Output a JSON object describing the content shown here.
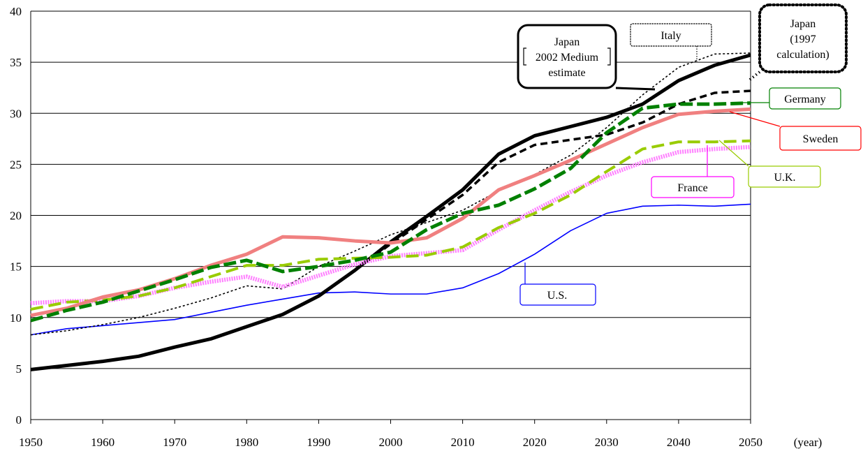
{
  "chart_data": {
    "type": "line",
    "title": "",
    "xlabel": "(year)",
    "ylabel": "",
    "xlim": [
      1950,
      2050
    ],
    "ylim": [
      0,
      40
    ],
    "grid": "horizontal",
    "x_ticks": [
      "1950",
      "1960",
      "1970",
      "1980",
      "1990",
      "2000",
      "2010",
      "2020",
      "2030",
      "2040",
      "2050"
    ],
    "y_ticks": [
      "0",
      "5",
      "10",
      "15",
      "20",
      "25",
      "30",
      "35",
      "40"
    ],
    "x": [
      1950,
      1955,
      1960,
      1965,
      1970,
      1975,
      1980,
      1985,
      1990,
      1995,
      2000,
      2005,
      2010,
      2015,
      2020,
      2025,
      2030,
      2035,
      2040,
      2045,
      2050
    ],
    "series": [
      {
        "id": "us",
        "name": "U.S.",
        "label_lines": [
          "U.S."
        ],
        "color": "#0000ff",
        "values": [
          8.3,
          8.9,
          9.2,
          9.5,
          9.8,
          10.5,
          11.2,
          11.8,
          12.4,
          12.5,
          12.3,
          12.3,
          12.9,
          14.3,
          16.2,
          18.5,
          20.2,
          20.9,
          21.0,
          20.9,
          21.1
        ]
      },
      {
        "id": "italy",
        "name": "Italy",
        "label_lines": [
          "Italy"
        ],
        "color": "#000000",
        "values": [
          8.3,
          8.7,
          9.3,
          10.0,
          10.9,
          11.9,
          13.1,
          12.8,
          15.0,
          16.5,
          18.1,
          19.3,
          20.5,
          22.4,
          24.0,
          25.9,
          28.6,
          31.8,
          34.5,
          35.8,
          35.9
        ]
      },
      {
        "id": "japan1997",
        "name": "Japan (1997 calculation)",
        "label_lines": [
          "Japan",
          "(1997",
          "calculation)"
        ],
        "color": "#000000",
        "values": [
          4.9,
          5.3,
          5.7,
          6.2,
          7.1,
          7.9,
          9.1,
          10.3,
          12.1,
          14.6,
          17.2,
          19.6,
          22.0,
          25.2,
          26.9,
          27.4,
          27.9,
          29.1,
          30.9,
          32.0,
          32.2
        ]
      },
      {
        "id": "japan2002",
        "name": "Japan 2002 Medium estimate",
        "label_lines": [
          "Japan",
          "2002 Medium",
          "estimate"
        ],
        "color": "#000000",
        "values": [
          4.9,
          5.3,
          5.7,
          6.2,
          7.1,
          7.9,
          9.1,
          10.3,
          12.1,
          14.6,
          17.4,
          19.9,
          22.5,
          26.0,
          27.8,
          28.7,
          29.6,
          30.9,
          33.2,
          34.7,
          35.7
        ]
      },
      {
        "id": "france",
        "name": "France",
        "label_lines": [
          "France"
        ],
        "color": "#ff7fff",
        "values": [
          11.4,
          11.6,
          11.6,
          12.1,
          12.9,
          13.5,
          14.0,
          13.0,
          14.1,
          15.2,
          16.0,
          16.3,
          16.6,
          18.6,
          20.5,
          22.3,
          23.9,
          25.2,
          26.2,
          26.5,
          26.7
        ]
      },
      {
        "id": "uk",
        "name": "U.K.",
        "label_lines": [
          "U.K."
        ],
        "color": "#99cc00",
        "values": [
          10.8,
          11.5,
          11.7,
          12.1,
          12.9,
          14.0,
          15.1,
          15.1,
          15.7,
          15.8,
          15.9,
          16.1,
          16.9,
          18.8,
          20.2,
          22.0,
          24.3,
          26.5,
          27.2,
          27.2,
          27.3
        ]
      },
      {
        "id": "sweden",
        "name": "Sweden",
        "label_lines": [
          "Sweden"
        ],
        "color": "#f08080",
        "values": [
          10.2,
          10.9,
          12.0,
          12.7,
          13.8,
          15.1,
          16.2,
          17.9,
          17.8,
          17.5,
          17.3,
          17.8,
          19.7,
          22.5,
          23.9,
          25.4,
          27.0,
          28.6,
          29.9,
          30.2,
          30.4
        ]
      },
      {
        "id": "germany",
        "name": "Germany",
        "label_lines": [
          "Germany"
        ],
        "color": "#008000",
        "values": [
          9.7,
          10.7,
          11.5,
          12.6,
          13.7,
          14.9,
          15.6,
          14.5,
          15.0,
          15.6,
          16.4,
          18.6,
          20.2,
          21.0,
          22.6,
          24.6,
          28.1,
          30.5,
          30.9,
          30.9,
          31.0
        ]
      }
    ]
  }
}
